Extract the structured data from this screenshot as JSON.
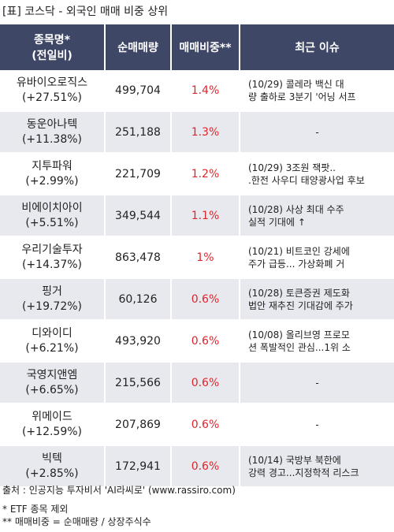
{
  "title": "[표] 코스닥 - 외국인 매매 비중 상위",
  "headers": {
    "name_line1": "종목명*",
    "name_line2": "(전일비)",
    "volume": "순매매량",
    "ratio": "매매비중**",
    "issue": "최근 이슈"
  },
  "rows": [
    {
      "name": "유바이오로직스",
      "change": "(+27.51%)",
      "volume": "499,704",
      "ratio": "1.4%",
      "issue1": "(10/29) 콜레라 백신 대",
      "issue2": "량 출하로 3분기 '어닝 서프"
    },
    {
      "name": "동운아나텍",
      "change": "(+11.38%)",
      "volume": "251,188",
      "ratio": "1.3%",
      "issue1": "-",
      "issue2": ""
    },
    {
      "name": "지투파워",
      "change": "(+2.99%)",
      "volume": "221,709",
      "ratio": "1.2%",
      "issue1": "(10/29) 3조원 잭팟..",
      "issue2": ".한전 사우디 태양광사업 후보"
    },
    {
      "name": "비에이치아이",
      "change": "(+5.51%)",
      "volume": "349,544",
      "ratio": "1.1%",
      "issue1": "(10/28) 사상 최대 수주",
      "issue2": "실적 기대에 ↑"
    },
    {
      "name": "우리기술투자",
      "change": "(+14.37%)",
      "volume": "863,478",
      "ratio": "1%",
      "issue1": "(10/21) 비트코인 강세에",
      "issue2": "주가 급등... 가상화폐 거"
    },
    {
      "name": "핑거",
      "change": "(+19.72%)",
      "volume": "60,126",
      "ratio": "0.6%",
      "issue1": "(10/28) 토큰증권 제도화",
      "issue2": "법안 재추진 기대감에 주가"
    },
    {
      "name": "디와이디",
      "change": "(+6.21%)",
      "volume": "493,920",
      "ratio": "0.6%",
      "issue1": "(10/08) 올리브영 프로모",
      "issue2": "션 폭발적인 관심...1위 소"
    },
    {
      "name": "국영지앤엠",
      "change": "(+6.65%)",
      "volume": "215,566",
      "ratio": "0.6%",
      "issue1": "-",
      "issue2": ""
    },
    {
      "name": "위메이드",
      "change": "(+12.59%)",
      "volume": "207,869",
      "ratio": "0.6%",
      "issue1": "-",
      "issue2": ""
    },
    {
      "name": "빅텍",
      "change": "(+2.85%)",
      "volume": "172,941",
      "ratio": "0.6%",
      "issue1": "(10/14) 국방부 북한에",
      "issue2": "강력 경고...지정학적 리스크"
    }
  ],
  "footer": {
    "source": "출처 : 인공지능 투자비서 'AI라씨로' (www.rassiro.com)",
    "note1": "* ETF 종목 제외",
    "note2": "** 매매비중 = 순매매량 / 상장주식수"
  },
  "colors": {
    "header_bg": "#3f4767",
    "ratio_text": "#e0242b",
    "row_alt_bg": "#e8e9ee"
  }
}
